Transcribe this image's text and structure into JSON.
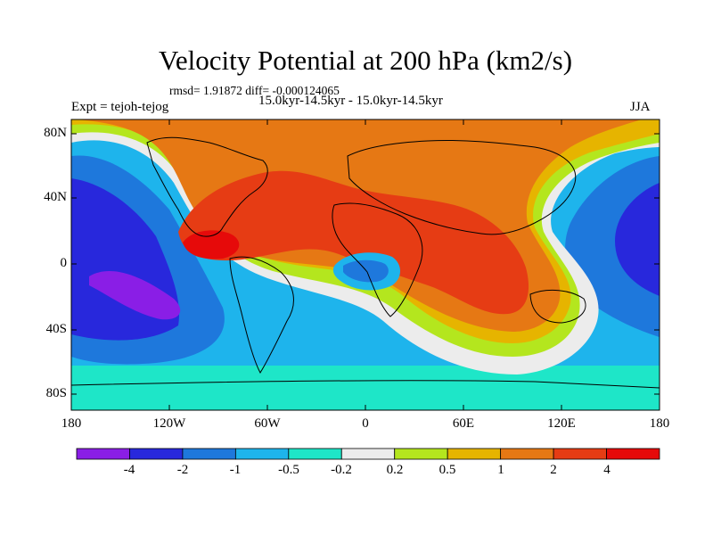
{
  "title": "Velocity Potential at 200 hPa (km2/s)",
  "stats_line": "rmsd= 1.91872 diff= -0.000124065",
  "subtitle": "15.0kyr-14.5kyr - 15.0kyr-14.5kyr",
  "left_label": "Expt = tejoh-tejog",
  "right_label": "JJA",
  "y_ticks": [
    "80N",
    "40N",
    "0",
    "40S",
    "80S"
  ],
  "x_ticks": [
    "180",
    "120W",
    "60W",
    "0",
    "60E",
    "120E",
    "180"
  ],
  "colorbar": {
    "labels": [
      "-4",
      "-2",
      "-1",
      "-0.5",
      "-0.2",
      "0.2",
      "0.5",
      "1",
      "2",
      "4"
    ],
    "colors": [
      "#8a1ee6",
      "#2828dc",
      "#1e78dc",
      "#1eb4ec",
      "#1ee6c8",
      "#ececec",
      "#b4e61e",
      "#e6b400",
      "#e67814",
      "#e63c14",
      "#e60a0a"
    ]
  }
}
